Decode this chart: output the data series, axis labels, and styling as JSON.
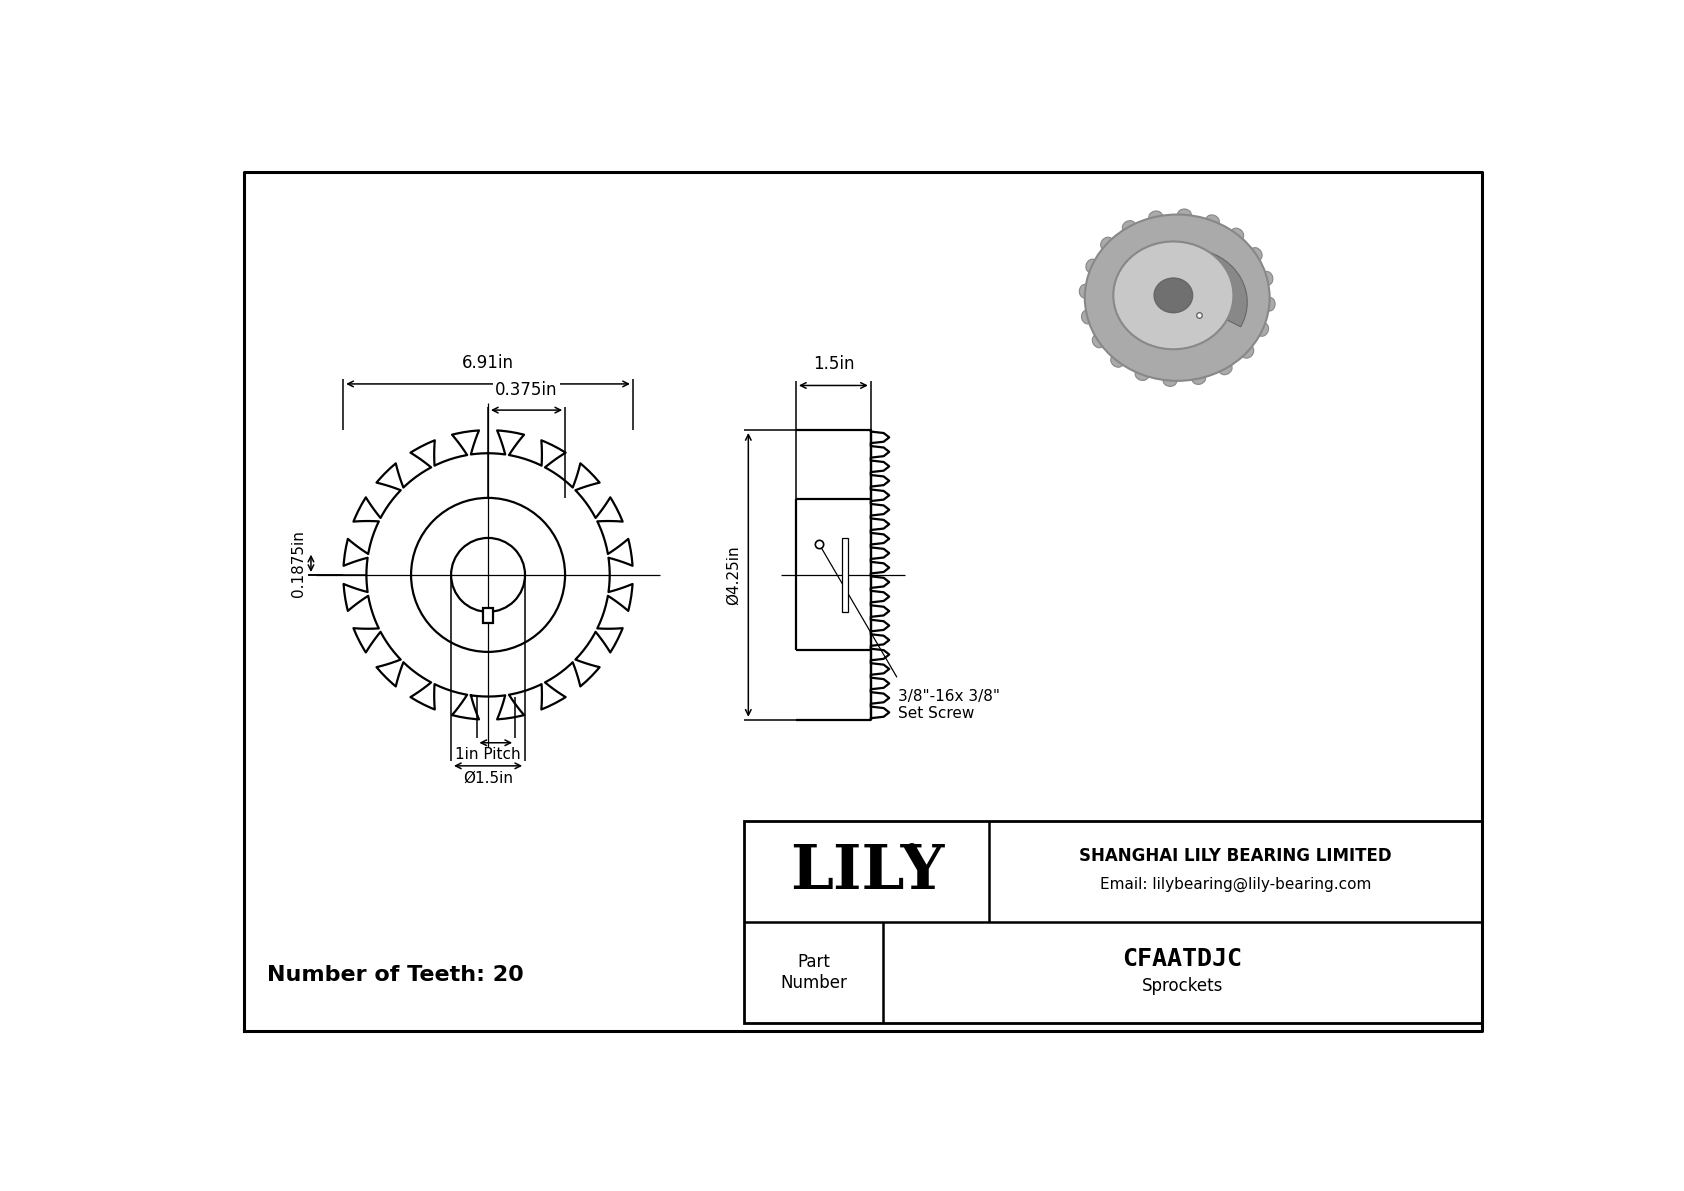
{
  "background_color": "#ffffff",
  "border_color": "#000000",
  "title": "CFAATDJC",
  "subtitle": "Sprockets",
  "company_name": "SHANGHAI LILY BEARING LIMITED",
  "company_email": "Email: lilybearing@lily-bearing.com",
  "part_label": "Part\nNumber",
  "brand": "LILY",
  "num_teeth": 20,
  "num_teeth_label": "Number of Teeth: 20",
  "dim_outer": "6.91in",
  "dim_hub": "0.375in",
  "dim_tooth_height": "0.1875in",
  "dim_side_width": "1.5in",
  "dim_bore": "Ø1.5in",
  "dim_pitch": "1in Pitch",
  "dim_height": "Ø4.25in",
  "dim_set_screw": "3/8\"-16x 3/8\"\nSet Screw",
  "line_color": "#000000",
  "body_bg": "#ffffff",
  "gray_light": "#c8c8c8",
  "gray_mid": "#aaaaaa",
  "gray_dark": "#888888",
  "gray_darker": "#666666"
}
